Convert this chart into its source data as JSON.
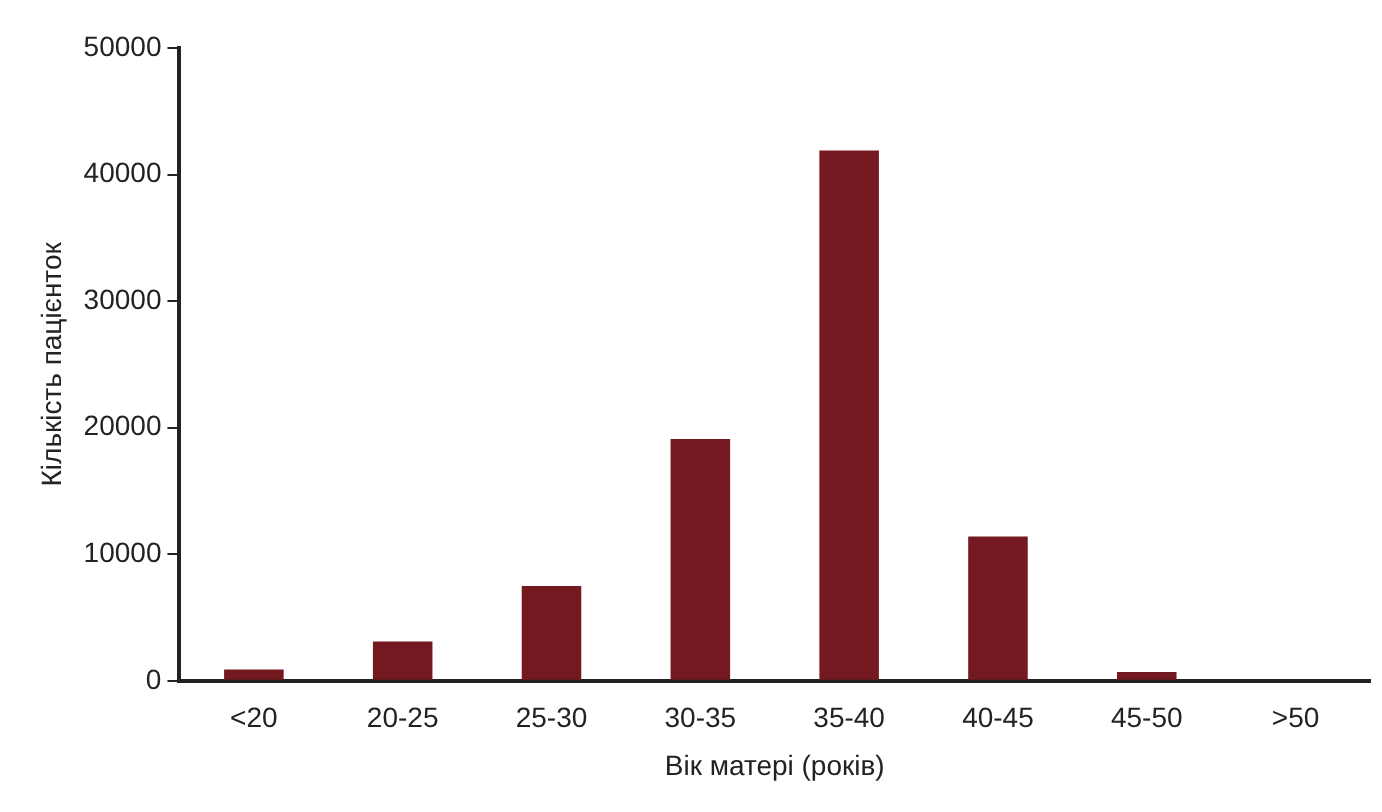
{
  "chart_data": {
    "type": "bar",
    "xlabel": "Вік матері (років)",
    "ylabel": "Кількість пацієнток",
    "categories": [
      "<20",
      "20-25",
      "25-30",
      "30-35",
      "35-40",
      "40-45",
      "45-50",
      ">50"
    ],
    "values": [
      900,
      3100,
      7500,
      19100,
      41900,
      11400,
      700,
      0
    ],
    "color": "#74191f",
    "ylim": [
      0,
      50000
    ],
    "yticks": [
      0,
      10000,
      20000,
      30000,
      40000,
      50000
    ],
    "grid": false,
    "legend": false
  }
}
